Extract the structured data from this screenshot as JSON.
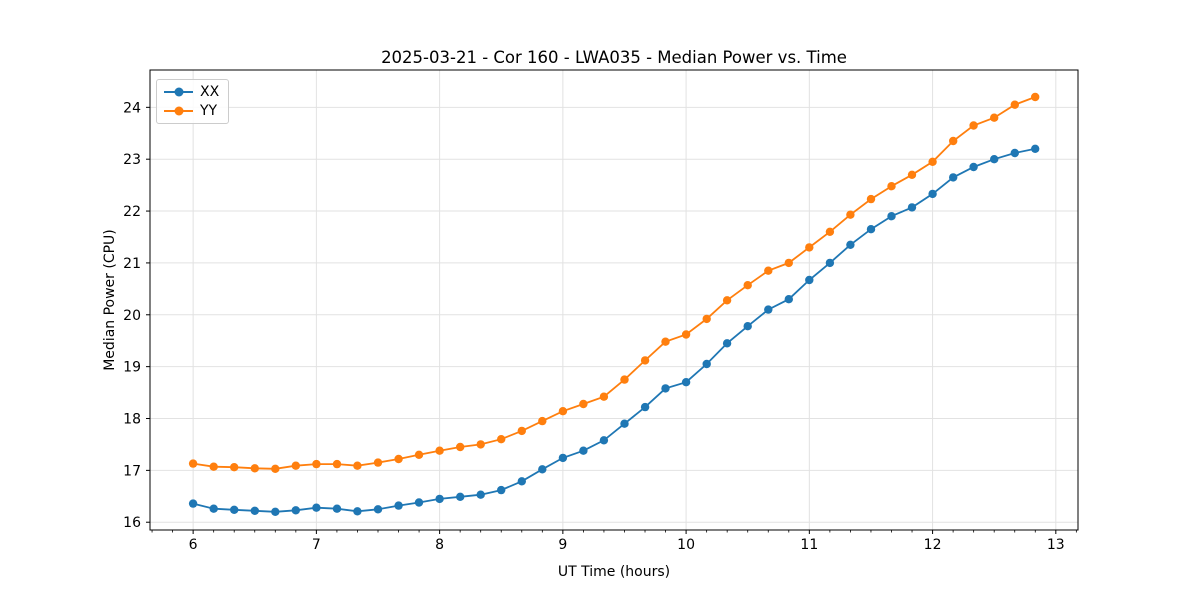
{
  "title": "2025-03-21 - Cor 160 - LWA035 - Median Power vs. Time",
  "chart_data": {
    "type": "line",
    "title": "2025-03-21 - Cor 160 - LWA035 - Median Power vs. Time",
    "xlabel": "UT Time (hours)",
    "ylabel": "Median Power (CPU)",
    "xlim": [
      5.65,
      13.18
    ],
    "ylim": [
      15.85,
      24.72
    ],
    "xticks": [
      6,
      7,
      8,
      9,
      10,
      11,
      12,
      13
    ],
    "yticks": [
      16,
      17,
      18,
      19,
      20,
      21,
      22,
      23,
      24
    ],
    "grid": true,
    "legend_position": "upper left",
    "marker": "circle",
    "x": [
      6.0,
      6.167,
      6.333,
      6.5,
      6.667,
      6.833,
      7.0,
      7.167,
      7.333,
      7.5,
      7.667,
      7.833,
      8.0,
      8.167,
      8.333,
      8.5,
      8.667,
      8.833,
      9.0,
      9.167,
      9.333,
      9.5,
      9.667,
      9.833,
      10.0,
      10.167,
      10.333,
      10.5,
      10.667,
      10.833,
      11.0,
      11.167,
      11.333,
      11.5,
      11.667,
      11.833,
      12.0,
      12.167,
      12.333,
      12.5,
      12.667,
      12.833
    ],
    "series": [
      {
        "name": "XX",
        "color": "#1f77b4",
        "values": [
          16.36,
          16.26,
          16.24,
          16.22,
          16.2,
          16.23,
          16.28,
          16.26,
          16.21,
          16.25,
          16.32,
          16.38,
          16.45,
          16.49,
          16.53,
          16.62,
          16.79,
          17.02,
          17.24,
          17.38,
          17.58,
          17.9,
          18.22,
          18.58,
          18.7,
          19.05,
          19.45,
          19.78,
          20.1,
          20.3,
          20.67,
          21.0,
          21.35,
          21.65,
          21.9,
          22.07,
          22.33,
          22.65,
          22.85,
          23.0,
          23.12,
          23.2
        ]
      },
      {
        "name": "YY",
        "color": "#ff7f0e",
        "values": [
          17.13,
          17.07,
          17.06,
          17.04,
          17.03,
          17.09,
          17.12,
          17.12,
          17.09,
          17.15,
          17.22,
          17.3,
          17.38,
          17.45,
          17.5,
          17.6,
          17.76,
          17.95,
          18.14,
          18.28,
          18.42,
          18.75,
          19.12,
          19.48,
          19.62,
          19.92,
          20.28,
          20.57,
          20.85,
          21.0,
          21.3,
          21.6,
          21.93,
          22.23,
          22.48,
          22.7,
          22.95,
          23.35,
          23.65,
          23.8,
          24.05,
          24.2
        ]
      }
    ]
  },
  "colors": {
    "background": "#ffffff",
    "grid": "#e2e2e2",
    "spine": "#000000",
    "series_xx": "#1f77b4",
    "series_yy": "#ff7f0e",
    "legend_border": "#cccccc"
  }
}
